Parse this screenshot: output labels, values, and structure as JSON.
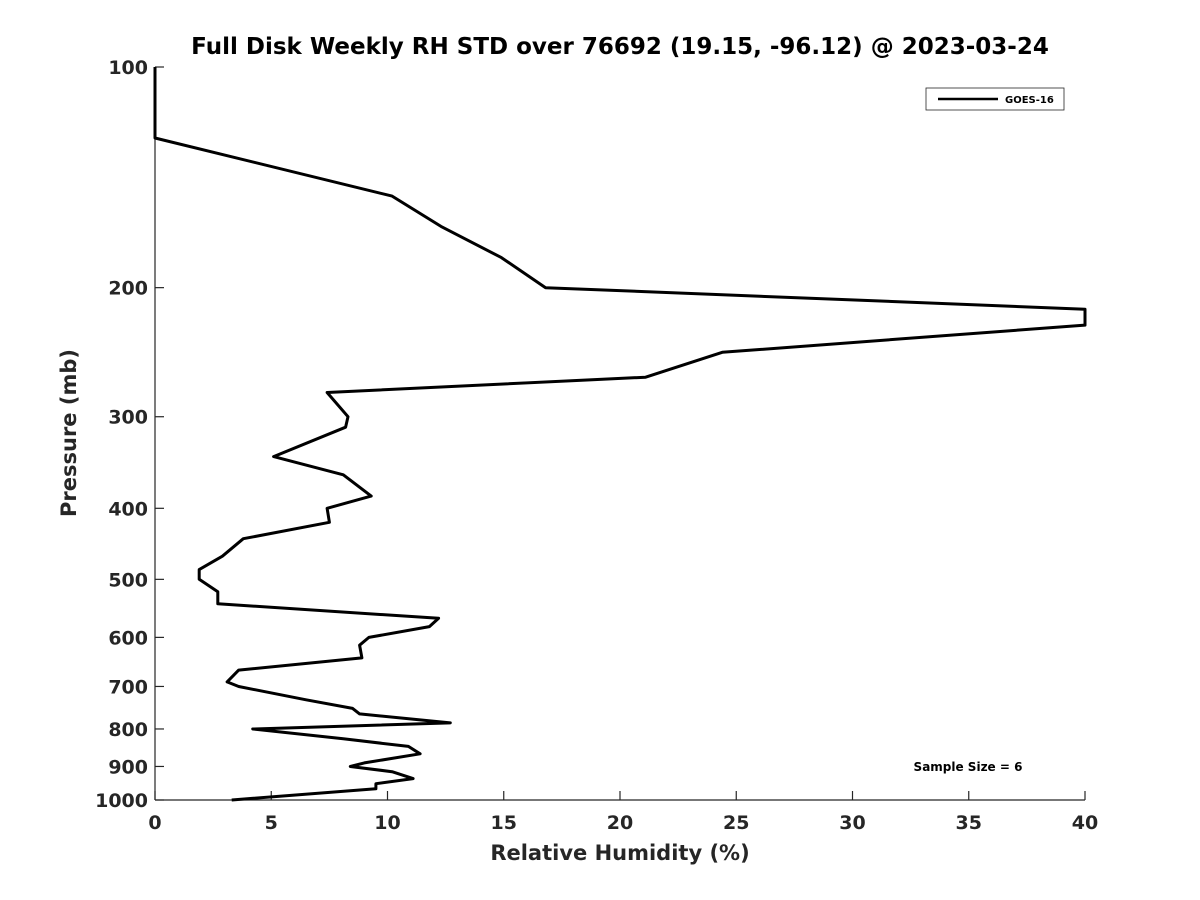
{
  "chart_data": {
    "type": "line",
    "title": "Full Disk Weekly RH STD over 76692 (19.15, -96.12) @ 2023-03-24",
    "xlabel": "Relative Humidity (%)",
    "ylabel": "Pressure (mb)",
    "xlim": [
      0,
      40
    ],
    "ylim": [
      100,
      1000
    ],
    "yscale": "log",
    "y_reversed": true,
    "xticks": [
      0,
      5,
      10,
      15,
      20,
      25,
      30,
      35,
      40
    ],
    "yticks": [
      100,
      200,
      300,
      400,
      500,
      600,
      700,
      800,
      900,
      1000
    ],
    "grid": false,
    "legend_position": "top-right",
    "series": [
      {
        "name": "GOES-16",
        "color": "#000000",
        "x": [
          0,
          0,
          10.2,
          12.3,
          14.9,
          16.8,
          40,
          40,
          24.4,
          21.1,
          7.4,
          8.3,
          8.2,
          5.1,
          8.1,
          9.3,
          7.4,
          7.5,
          3.8,
          2.9,
          1.9,
          1.9,
          2.7,
          2.7,
          12.2,
          11.8,
          9.2,
          8.8,
          8.9,
          3.6,
          3.1,
          3.6,
          6.5,
          8.5,
          8.8,
          12.7,
          4.2,
          8.1,
          10.9,
          11.4,
          9.0,
          8.4,
          10.2,
          11.1,
          9.5,
          9.5,
          3.3
        ],
        "y": [
          100,
          125,
          150,
          165,
          182,
          200,
          214,
          225,
          245,
          265,
          278,
          300,
          310,
          340,
          360,
          385,
          400,
          418,
          440,
          465,
          485,
          500,
          520,
          540,
          565,
          580,
          600,
          615,
          640,
          665,
          690,
          700,
          730,
          750,
          763,
          785,
          800,
          825,
          845,
          865,
          890,
          900,
          915,
          935,
          950,
          965,
          1000
        ]
      }
    ],
    "annotations": [
      {
        "text": "Sample Size = 6"
      }
    ]
  }
}
